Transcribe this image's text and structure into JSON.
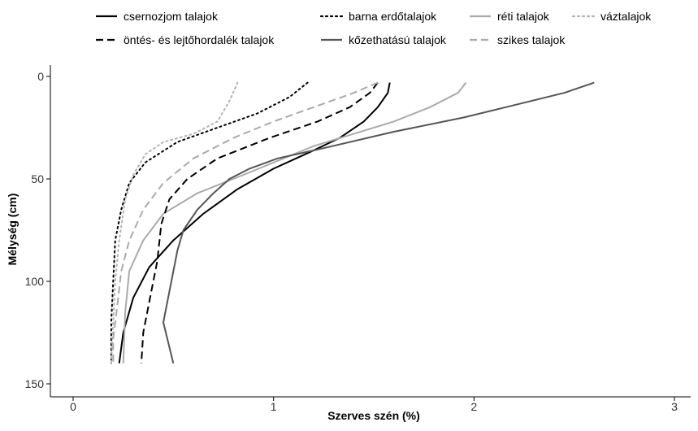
{
  "chart_data": {
    "type": "line",
    "xlabel": "Szerves szén (%)",
    "ylabel": "Mélység (cm)",
    "xlim": [
      0,
      3
    ],
    "ylim": [
      0,
      150
    ],
    "y_inverted": true,
    "grid": false,
    "legend_position": "top",
    "x_ticks": [
      0,
      1,
      2,
      3
    ],
    "y_ticks": [
      0,
      50,
      100,
      150
    ],
    "series": [
      {
        "name": "csernozjom talajok",
        "style": "solid",
        "color": "#000000",
        "width": 2,
        "points": [
          [
            1.58,
            3
          ],
          [
            1.57,
            8
          ],
          [
            1.52,
            15
          ],
          [
            1.45,
            22
          ],
          [
            1.33,
            30
          ],
          [
            1.18,
            37
          ],
          [
            1.0,
            45
          ],
          [
            0.82,
            55
          ],
          [
            0.65,
            67
          ],
          [
            0.5,
            80
          ],
          [
            0.38,
            93
          ],
          [
            0.3,
            108
          ],
          [
            0.25,
            125
          ],
          [
            0.23,
            140
          ]
        ]
      },
      {
        "name": "barna erdőtalajok",
        "style": "dotted",
        "color": "#000000",
        "width": 2,
        "points": [
          [
            1.17,
            3
          ],
          [
            1.08,
            10
          ],
          [
            0.92,
            18
          ],
          [
            0.72,
            25
          ],
          [
            0.52,
            32
          ],
          [
            0.36,
            42
          ],
          [
            0.28,
            52
          ],
          [
            0.24,
            65
          ],
          [
            0.21,
            80
          ],
          [
            0.2,
            100
          ],
          [
            0.19,
            120
          ],
          [
            0.19,
            140
          ]
        ]
      },
      {
        "name": "réti talajok",
        "style": "solid",
        "color": "#aaaaaa",
        "width": 2,
        "points": [
          [
            1.96,
            3
          ],
          [
            1.92,
            8
          ],
          [
            1.78,
            15
          ],
          [
            1.6,
            22
          ],
          [
            1.4,
            28
          ],
          [
            1.2,
            34
          ],
          [
            1.05,
            40
          ],
          [
            0.85,
            48
          ],
          [
            0.62,
            57
          ],
          [
            0.45,
            67
          ],
          [
            0.35,
            80
          ],
          [
            0.28,
            95
          ],
          [
            0.26,
            115
          ],
          [
            0.25,
            140
          ]
        ]
      },
      {
        "name": "váztalajok",
        "style": "dotted",
        "color": "#b3b3b3",
        "width": 2,
        "points": [
          [
            0.82,
            3
          ],
          [
            0.78,
            12
          ],
          [
            0.72,
            22
          ],
          [
            0.6,
            28
          ],
          [
            0.45,
            32
          ],
          [
            0.36,
            38
          ],
          [
            0.3,
            48
          ],
          [
            0.26,
            60
          ],
          [
            0.23,
            80
          ],
          [
            0.21,
            100
          ],
          [
            0.2,
            120
          ],
          [
            0.19,
            140
          ]
        ]
      },
      {
        "name": "öntés- és lejtőhordalék talajok",
        "style": "dashed",
        "color": "#000000",
        "width": 2,
        "points": [
          [
            1.52,
            3
          ],
          [
            1.48,
            8
          ],
          [
            1.38,
            15
          ],
          [
            1.22,
            22
          ],
          [
            0.98,
            30
          ],
          [
            0.72,
            40
          ],
          [
            0.57,
            50
          ],
          [
            0.48,
            60
          ],
          [
            0.44,
            72
          ],
          [
            0.42,
            90
          ],
          [
            0.38,
            110
          ],
          [
            0.35,
            125
          ],
          [
            0.34,
            140
          ]
        ]
      },
      {
        "name": "kőzethatású talajok",
        "style": "solid",
        "color": "#555555",
        "width": 2,
        "points": [
          [
            2.6,
            3
          ],
          [
            2.45,
            8
          ],
          [
            2.2,
            14
          ],
          [
            1.95,
            20
          ],
          [
            1.6,
            27
          ],
          [
            1.25,
            35
          ],
          [
            1.02,
            40
          ],
          [
            0.88,
            45
          ],
          [
            0.78,
            50
          ],
          [
            0.7,
            57
          ],
          [
            0.62,
            65
          ],
          [
            0.55,
            75
          ],
          [
            0.52,
            85
          ],
          [
            0.49,
            100
          ],
          [
            0.45,
            120
          ],
          [
            0.5,
            140
          ]
        ]
      },
      {
        "name": "szikes talajok",
        "style": "dashed",
        "color": "#aaaaaa",
        "width": 2,
        "points": [
          [
            1.52,
            3
          ],
          [
            1.4,
            8
          ],
          [
            1.2,
            15
          ],
          [
            1.0,
            22
          ],
          [
            0.8,
            30
          ],
          [
            0.6,
            40
          ],
          [
            0.45,
            52
          ],
          [
            0.35,
            65
          ],
          [
            0.28,
            80
          ],
          [
            0.24,
            95
          ],
          [
            0.22,
            112
          ],
          [
            0.2,
            128
          ],
          [
            0.2,
            140
          ]
        ]
      }
    ]
  }
}
